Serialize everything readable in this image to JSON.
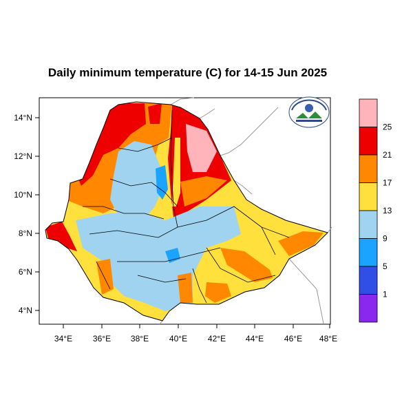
{
  "title": "Daily minimum temperature (C) for 14-15 Jun 2025",
  "x_ticks": [
    "34°E",
    "36°E",
    "38°E",
    "40°E",
    "42°E",
    "44°E",
    "46°E",
    "48°E"
  ],
  "y_ticks": [
    "14°N",
    "12°N",
    "10°N",
    "8°N",
    "6°N",
    "4°N"
  ],
  "legend": {
    "labels": [
      "25",
      "21",
      "17",
      "13",
      "9",
      "5",
      "1"
    ],
    "colors": [
      "#ffb3ba",
      "#ee0000",
      "#ff8800",
      "#ffe03c",
      "#9fd3ef",
      "#1aa4ff",
      "#2f4fe6",
      "#8a28f0"
    ]
  },
  "logo_icon": "meteorology-agency-logo"
}
